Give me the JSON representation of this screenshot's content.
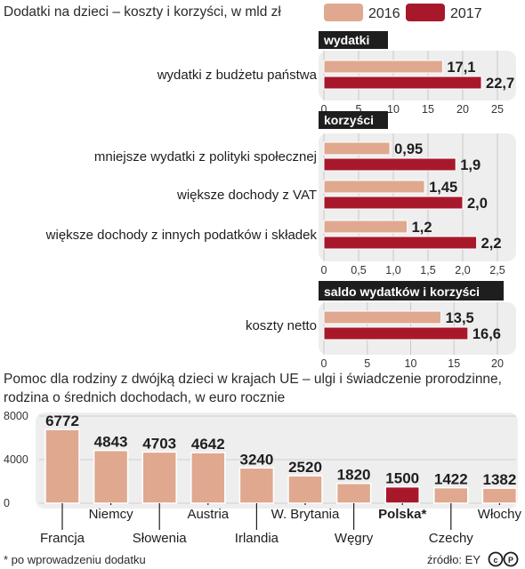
{
  "header": {
    "title": "Dodatki na dzieci – koszty i korzyści, w mld zł",
    "legend": [
      {
        "label": "2016",
        "color": "#e0a88f"
      },
      {
        "label": "2017",
        "color": "#a8182b"
      }
    ]
  },
  "colors": {
    "c2016": "#e0a88f",
    "c2017": "#a8182b",
    "panel": "#eeeeee",
    "section_header_bg": "#1e1e1e"
  },
  "chart_data": [
    {
      "type": "bar",
      "orientation": "horizontal",
      "section_label": "wydatki",
      "categories": [
        "wydatki z budżetu państwa"
      ],
      "series": [
        {
          "name": "2016",
          "values": [
            17.1
          ]
        },
        {
          "name": "2017",
          "values": [
            22.7
          ]
        }
      ],
      "value_labels": {
        "2016": [
          "17,1"
        ],
        "2017": [
          "22,7"
        ]
      },
      "xlim": [
        0,
        25
      ],
      "ticks": [
        0,
        5,
        10,
        15,
        20,
        25
      ],
      "tick_labels": [
        "0",
        "5",
        "10",
        "15",
        "20",
        "25"
      ]
    },
    {
      "type": "bar",
      "orientation": "horizontal",
      "section_label": "korzyści",
      "categories": [
        "mniejsze wydatki z polityki społecznej",
        "większe dochody z VAT",
        "większe dochody z innych podatków i składek"
      ],
      "series": [
        {
          "name": "2016",
          "values": [
            0.95,
            1.45,
            1.2
          ]
        },
        {
          "name": "2017",
          "values": [
            1.9,
            2.0,
            2.2
          ]
        }
      ],
      "value_labels": {
        "2016": [
          "0,95",
          "1,45",
          "1,2"
        ],
        "2017": [
          "1,9",
          "2,0",
          "2,2"
        ]
      },
      "xlim": [
        0,
        2.5
      ],
      "ticks": [
        0,
        0.5,
        1,
        1.5,
        2,
        2.5
      ],
      "tick_labels": [
        "0",
        "0,5",
        "1,0",
        "1,5",
        "2,0",
        "2,5"
      ]
    },
    {
      "type": "bar",
      "orientation": "horizontal",
      "section_label": "saldo wydatków i korzyści",
      "categories": [
        "koszty netto"
      ],
      "series": [
        {
          "name": "2016",
          "values": [
            13.5
          ]
        },
        {
          "name": "2017",
          "values": [
            16.6
          ]
        }
      ],
      "value_labels": {
        "2016": [
          "13,5"
        ],
        "2017": [
          "16,6"
        ]
      },
      "xlim": [
        0,
        20
      ],
      "ticks": [
        0,
        5,
        10,
        15,
        20
      ],
      "tick_labels": [
        "0",
        "5",
        "10",
        "15",
        "20"
      ]
    },
    {
      "type": "bar",
      "orientation": "vertical",
      "title": "Pomoc dla rodziny z dwójką dzieci w krajach UE – ulgi i świadczenie prorodzinne, rodzina o średnich dochodach, w euro rocznie",
      "categories": [
        "Francja",
        "Niemcy",
        "Słowenia",
        "Austria",
        "Irlandia",
        "W. Brytania",
        "Węgry",
        "Polska*",
        "Czechy",
        "Włochy"
      ],
      "values": [
        6772,
        4843,
        4703,
        4642,
        3240,
        2520,
        1820,
        1500,
        1422,
        1382
      ],
      "value_labels": [
        "6772",
        "4843",
        "4703",
        "4642",
        "3240",
        "2520",
        "1820",
        "1500",
        "1422",
        "1382"
      ],
      "highlight": "Polska*",
      "ylim": [
        0,
        8000
      ],
      "yticks": [
        0,
        4000,
        8000
      ],
      "ytick_labels": [
        "0",
        "4000",
        "8000"
      ]
    }
  ],
  "bottom_title": {
    "line1": "Pomoc dla rodziny z dwójką dzieci w krajach UE – ulgi i świadczenie prorodzinne,",
    "line2": "rodzina o średnich dochodach, w euro rocznie"
  },
  "footer": {
    "note": "* po wprowadzeniu dodatku",
    "source": "źródło: EY",
    "license_icon": "cc-by-icon"
  }
}
